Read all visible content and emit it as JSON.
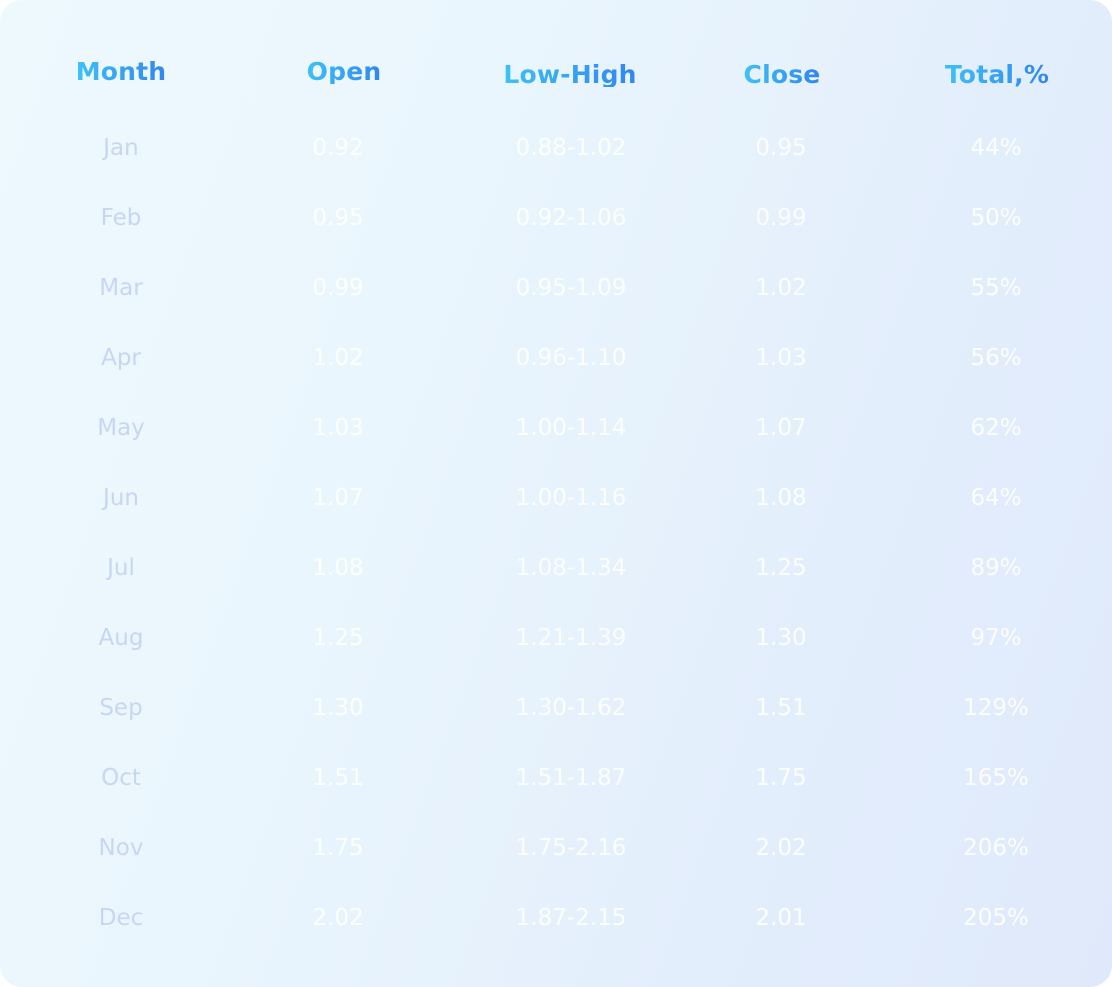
{
  "headers": {
    "month": "Month",
    "open": "Open",
    "low_high": "Low-High",
    "close": "Close",
    "total": "Total,%"
  },
  "chart_data": {
    "type": "table",
    "columns": [
      "Month",
      "Open",
      "Low-High",
      "Close",
      "Total,%"
    ],
    "rows": [
      {
        "month": "Jan",
        "open": "0.92",
        "low_high": "0.88-1.02",
        "close": "0.95",
        "total": "44%"
      },
      {
        "month": "Feb",
        "open": "0.95",
        "low_high": "0.92-1.06",
        "close": "0.99",
        "total": "50%"
      },
      {
        "month": "Mar",
        "open": "0.99",
        "low_high": "0.95-1.09",
        "close": "1.02",
        "total": "55%"
      },
      {
        "month": "Apr",
        "open": "1.02",
        "low_high": "0.96-1.10",
        "close": "1.03",
        "total": "56%"
      },
      {
        "month": "May",
        "open": "1.03",
        "low_high": "1.00-1.14",
        "close": "1.07",
        "total": "62%"
      },
      {
        "month": "Jun",
        "open": "1.07",
        "low_high": "1.00-1.16",
        "close": "1.08",
        "total": "64%"
      },
      {
        "month": "Jul",
        "open": "1.08",
        "low_high": "1.08-1.34",
        "close": "1.25",
        "total": "89%"
      },
      {
        "month": "Aug",
        "open": "1.25",
        "low_high": "1.21-1.39",
        "close": "1.30",
        "total": "97%"
      },
      {
        "month": "Sep",
        "open": "1.30",
        "low_high": "1.30-1.62",
        "close": "1.51",
        "total": "129%"
      },
      {
        "month": "Oct",
        "open": "1.51",
        "low_high": "1.51-1.87",
        "close": "1.75",
        "total": "165%"
      },
      {
        "month": "Nov",
        "open": "1.75",
        "low_high": "1.75-2.16",
        "close": "2.02",
        "total": "206%"
      },
      {
        "month": "Dec",
        "open": "2.02",
        "low_high": "1.87-2.15",
        "close": "2.01",
        "total": "205%"
      }
    ]
  },
  "colors": {
    "header_gradient_start": "#3fc0f6",
    "header_gradient_end": "#2f86f0",
    "month_text": "#c7d6f4",
    "value_text": "#ffffff"
  }
}
